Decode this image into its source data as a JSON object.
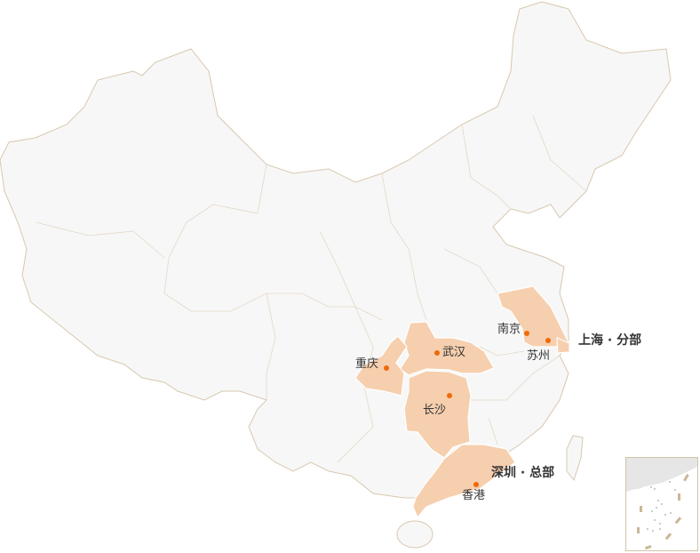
{
  "colors": {
    "land": "#f7f7f7",
    "border": "#d8c8b0",
    "highlight": "#f6cfae",
    "dot": "#ee6a0a"
  },
  "highlighted_regions": [
    "jiangsu",
    "shanghai",
    "hubei",
    "chongqing",
    "hunan",
    "guangdong"
  ],
  "cities": [
    {
      "name": "南京"
    },
    {
      "name": "苏州"
    },
    {
      "name": "武汉"
    },
    {
      "name": "重庆"
    },
    {
      "name": "长沙"
    },
    {
      "name": "香港"
    }
  ],
  "offices": {
    "shanghai": "上海 · 分部",
    "shenzhen": "深圳 · 总部"
  },
  "inset": "south-china-sea-islands"
}
